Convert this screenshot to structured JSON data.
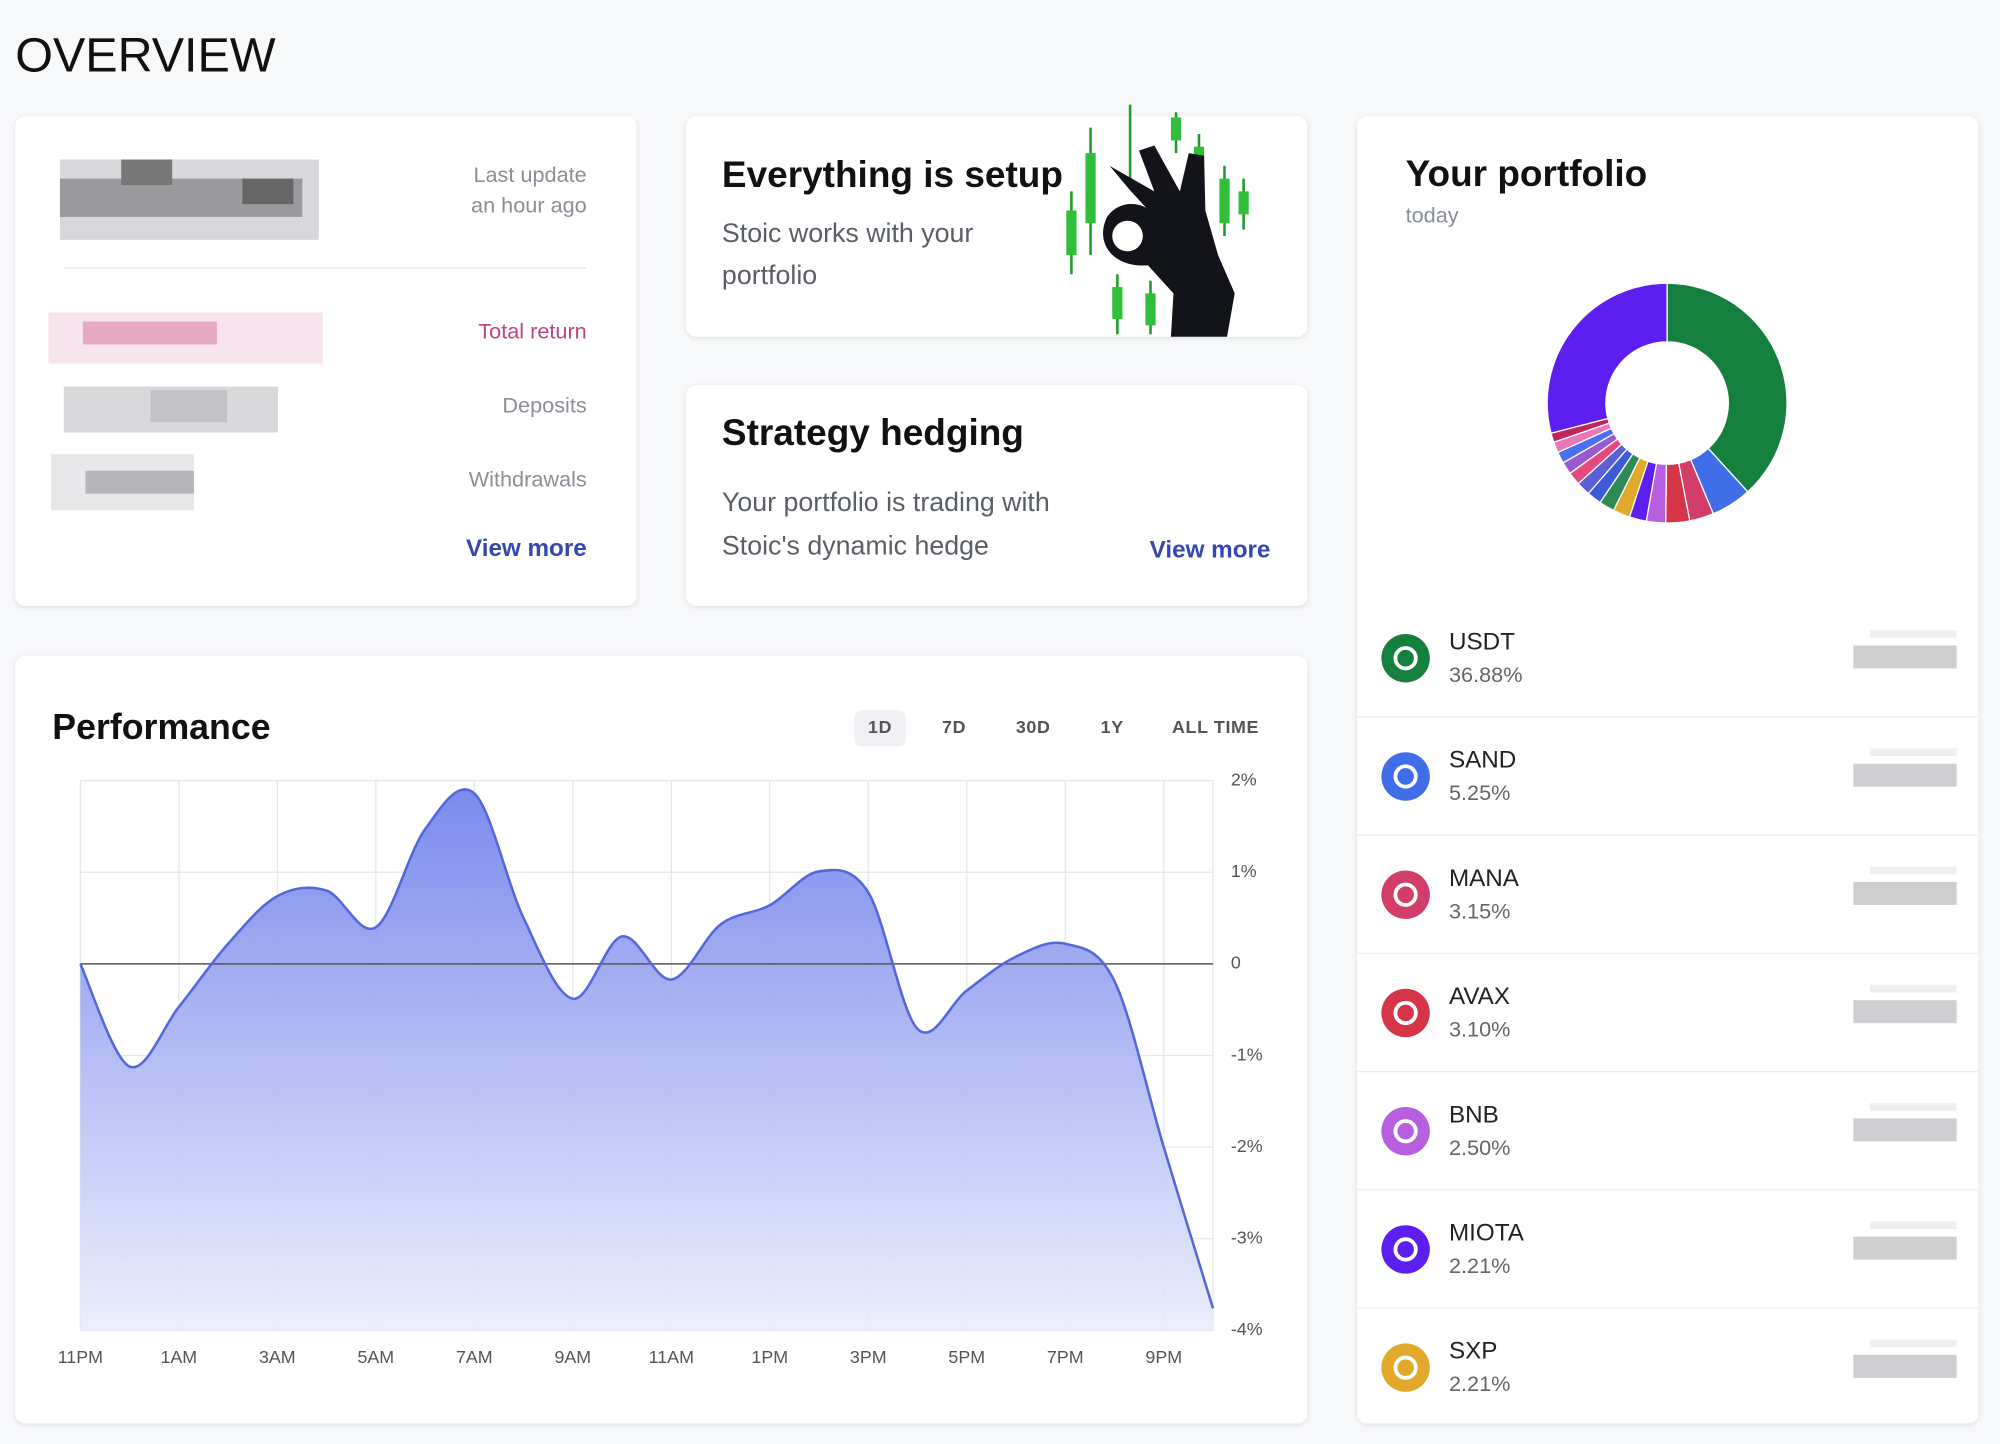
{
  "header": {
    "title": "OVERVIEW"
  },
  "summary_card": {
    "last_update": "Last update",
    "updated": "an hour ago",
    "rows": [
      "Total return",
      "Deposits",
      "Withdrawals"
    ],
    "link": "View more"
  },
  "setup_card": {
    "title": "Everything is setup",
    "text": [
      "Stoic works with your",
      "portfolio"
    ]
  },
  "hedging_card": {
    "title": "Strategy hedging",
    "text": [
      "Your portfolio is trading with",
      "Stoic's dynamic hedge"
    ],
    "link": "View more"
  },
  "performance": {
    "type": "area",
    "title": "Performance",
    "ranges": [
      "1D",
      "7D",
      "30D",
      "1Y",
      "ALL TIME"
    ],
    "selected_range": 0,
    "categories": [
      "11PM",
      null,
      "1AM",
      null,
      "3AM",
      null,
      "5AM",
      null,
      "7AM",
      null,
      "9AM",
      null,
      "11AM",
      null,
      "1PM",
      null,
      "3PM",
      null,
      "5PM",
      null,
      "7PM",
      null,
      "9PM",
      null
    ],
    "values": [
      0,
      -1.12,
      -0.47,
      0.22,
      0.74,
      0.8,
      0.4,
      1.47,
      1.86,
      0.5,
      -0.38,
      0.3,
      -0.17,
      0.43,
      0.64,
      1.01,
      0.78,
      -0.71,
      -0.29,
      0.08,
      0.22,
      -0.19,
      -2.0,
      -3.76
    ],
    "color": "#5567dc",
    "ylim": [
      -4,
      2
    ],
    "yticks": [
      {
        "value": 2,
        "label": "2%"
      },
      {
        "value": 1,
        "label": "1%"
      },
      0,
      {
        "value": -1,
        "label": "-1%"
      },
      {
        "value": -2,
        "label": "-2%"
      },
      {
        "value": -3,
        "label": "-3%"
      },
      {
        "value": -4,
        "label": "-4%"
      }
    ],
    "grid": true
  },
  "portfolio": {
    "type": "donut",
    "title": "Your portfolio",
    "subtitle": "today",
    "categories": [
      "USDT",
      "SAND",
      "MANA",
      "AVAX",
      "BNB",
      "MIOTA",
      "SXP",
      null,
      null,
      null,
      null,
      null,
      null,
      null,
      null,
      null
    ],
    "values": [
      36.88,
      5.25,
      3.15,
      3.1,
      2.5,
      2.21,
      2.21,
      2.0,
      1.9,
      1.8,
      1.7,
      1.6,
      1.5,
      1.4,
      1.2,
      28
    ],
    "value_labels": [
      "36.88%",
      "5.25%",
      "3.15%",
      "3.10%",
      "2.50%",
      "2.21%",
      "2.21%",
      null,
      null,
      null,
      null,
      null,
      null,
      null,
      null,
      null
    ],
    "colors": [
      "#15803d",
      "#3f6ee8",
      "#d23d69",
      "#d63447",
      "#b75fe0",
      "#5c1ff0",
      "#e0a929",
      "#2e8b57",
      "#3b5bdb",
      "#5b5fd6",
      "#e64980",
      "#9b59d0",
      "#4c6ef5",
      "#e879b9",
      "#c2255c",
      "#5c1ff0"
    ]
  }
}
